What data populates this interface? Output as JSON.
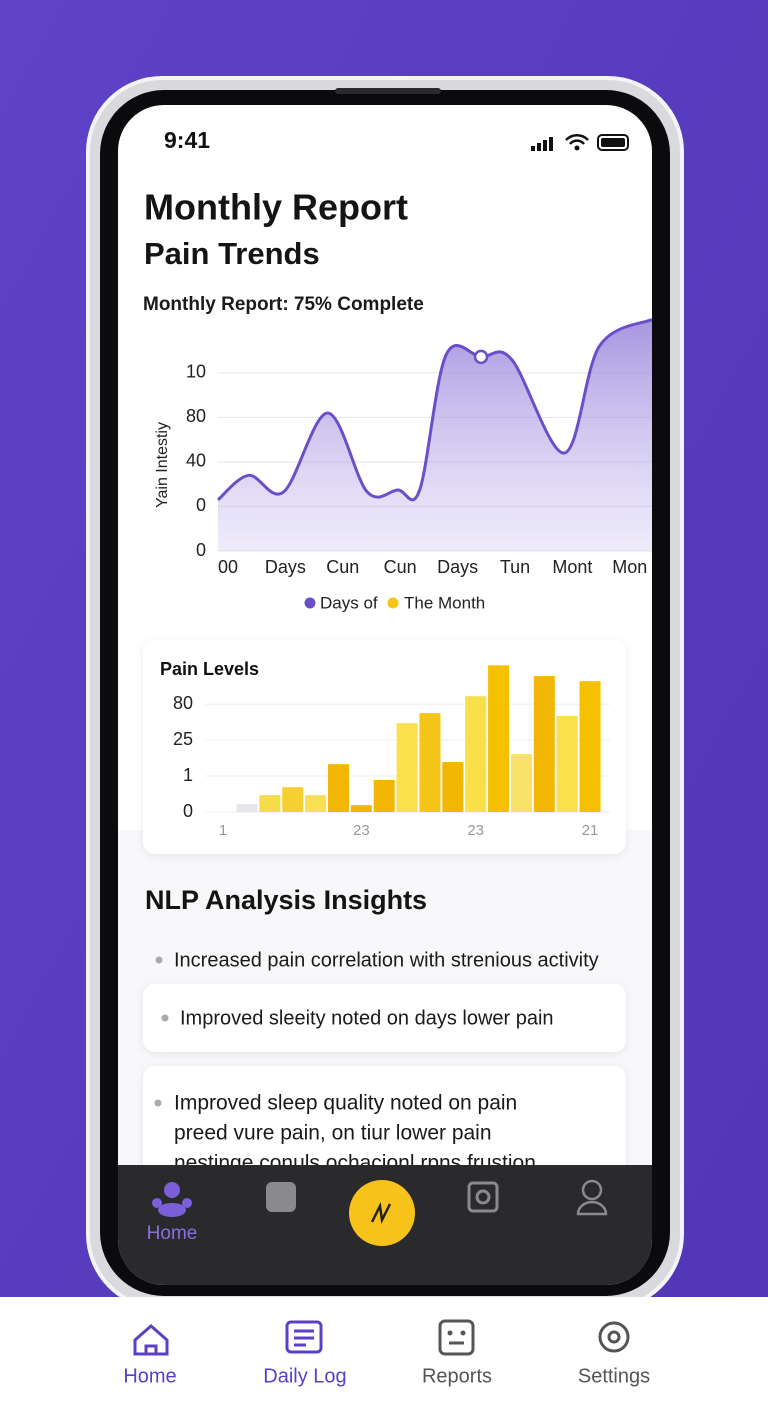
{
  "status_bar": {
    "time": "9:41"
  },
  "header": {
    "title": "Monthly Report",
    "subtitle": "Pain Trends",
    "progress": "Monthly Report: 75% Complete"
  },
  "chart_data": [
    {
      "type": "line",
      "y_label": "Yain Intestiy",
      "categories": [
        "00",
        "Days",
        "Cun",
        "Cun",
        "Days",
        "Tun",
        "Mont",
        "Mon"
      ],
      "x": [
        0,
        0.7,
        1.5,
        2.5,
        3.4,
        4.1,
        4.6,
        5.2,
        6,
        6.7,
        7.9,
        8.7,
        9.9
      ],
      "xlim": [
        0,
        9.9
      ],
      "series": [
        {
          "name": "Days of",
          "color": "#6a4fc8",
          "values": [
            1.15,
            1.7,
            1.33,
            3.1,
            1.33,
            1.37,
            1.37,
            4.4,
            4.36,
            4.3,
            2.2,
            4.6,
            5.2
          ]
        }
      ],
      "legend_extra": {
        "name": "The Month",
        "color": "#f5c518"
      },
      "ylim": [
        0,
        5.3
      ],
      "yticks": [
        {
          "value": 4,
          "label": "10"
        },
        {
          "value": 3,
          "label": "80"
        },
        {
          "value": 2,
          "label": "40"
        },
        {
          "value": 1,
          "label": "0"
        },
        0
      ],
      "grid": true
    },
    {
      "type": "bar",
      "title": "Pain Levels",
      "categories": [
        "1",
        null,
        null,
        null,
        null,
        "23",
        null,
        null,
        null,
        null,
        "23",
        null,
        null,
        null,
        null,
        "21"
      ],
      "values": [
        0.22,
        0.47,
        0.69,
        0.47,
        1.33,
        0.19,
        0.89,
        2.47,
        2.75,
        1.39,
        3.22,
        4.08,
        1.61,
        3.78,
        2.67,
        3.64
      ],
      "colors": [
        "#e6e6ee",
        "#f7dc4a",
        "#f5d033",
        "#f7e055",
        "#f2b705",
        "#f2b705",
        "#f2b705",
        "#f9e04c",
        "#f5c518",
        "#f2b705",
        "#f9df4a",
        "#f5c000",
        "#f9e26a",
        "#f2b705",
        "#f9e04c",
        "#f5c000"
      ],
      "ylim": [
        0,
        4.2
      ],
      "yticks": [
        {
          "value": 3,
          "label": "80"
        },
        {
          "value": 2,
          "label": "25"
        },
        1,
        0
      ],
      "grid": true
    }
  ],
  "insights": {
    "title": "NLP Analysis Insights",
    "items": [
      [
        "Increased pain correlation with strenious activity"
      ],
      [
        "Improved sleeity noted on days lower pain"
      ],
      [
        "Improved sleep quality noted on pain",
        "preed vure pain, on tiur lower pain",
        "nestinge conuls ochacionl rpns frustion"
      ]
    ]
  },
  "app_nav": {
    "home": "Home"
  },
  "bottom_nav": [
    "Home",
    "Daily Log",
    "Reports",
    "Settings"
  ]
}
